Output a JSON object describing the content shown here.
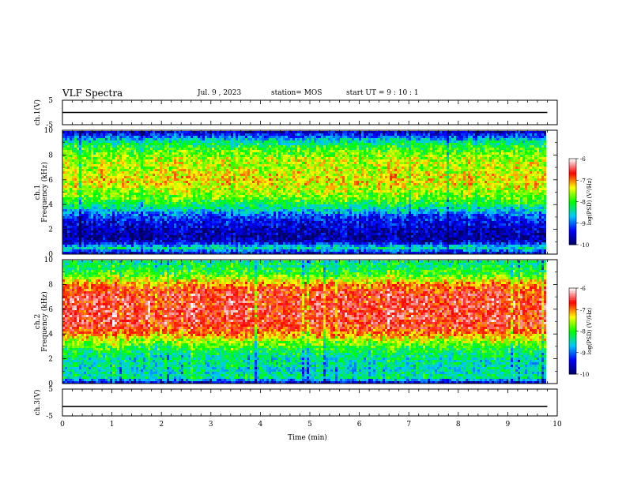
{
  "header": {
    "title": "VLF Spectra",
    "date": "Jul. 9 , 2023",
    "station": "station= MOS",
    "start": "start UT =  9 : 10 : 1"
  },
  "chart_data": [
    {
      "type": "line",
      "ylabel": "ch.1(V)",
      "ylim": [
        -5,
        5
      ],
      "yticks": [
        "5",
        "-5"
      ],
      "series": [
        {
          "x": [
            0,
            9.8
          ],
          "y": [
            0,
            0
          ]
        }
      ]
    },
    {
      "type": "heatmap",
      "ylabel": "ch.1\nFrequency (kHz)",
      "ylim": [
        0,
        10
      ],
      "yticks": [
        "0",
        "2",
        "4",
        "6",
        "8",
        "10"
      ],
      "xlim": [
        0,
        9.8
      ],
      "profile_freq_khz": [
        0,
        0.5,
        1,
        1.5,
        2,
        2.5,
        3,
        3.5,
        4,
        4.5,
        5,
        5.5,
        6,
        6.5,
        7,
        7.5,
        8,
        8.5,
        9,
        9.5,
        10
      ],
      "profile_log_psd": [
        -9.6,
        -8.4,
        -9.6,
        -9.7,
        -9.6,
        -9.4,
        -9.2,
        -8.6,
        -8.2,
        -7.8,
        -7.6,
        -7.4,
        -7.3,
        -7.4,
        -7.5,
        -7.5,
        -7.7,
        -7.9,
        -8.3,
        -9.0,
        -9.8
      ],
      "colorbar": {
        "label": "log(PSD) (V²/Hz)",
        "ticks": [
          "-6",
          "-7",
          "-8",
          "-9",
          "-10"
        ],
        "range": [
          -10,
          -6
        ]
      }
    },
    {
      "type": "heatmap",
      "ylabel": "ch.2\nFrequency (kHz)",
      "ylim": [
        0,
        10
      ],
      "yticks": [
        "0",
        "2",
        "4",
        "6",
        "8",
        "10"
      ],
      "xlim": [
        0,
        9.8
      ],
      "profile_freq_khz": [
        0,
        0.5,
        1,
        1.5,
        2,
        2.5,
        3,
        3.5,
        4,
        4.5,
        5,
        5.5,
        6,
        6.5,
        7,
        7.5,
        8,
        8.5,
        9,
        9.5,
        10
      ],
      "profile_log_psd": [
        -9.6,
        -8.3,
        -8.5,
        -8.4,
        -8.4,
        -8.2,
        -7.9,
        -7.5,
        -7.0,
        -6.7,
        -6.6,
        -6.6,
        -6.6,
        -6.6,
        -6.6,
        -6.7,
        -7.0,
        -7.6,
        -8.0,
        -8.2,
        -8.3
      ],
      "colorbar": {
        "label": "log(PSD) (V²/Hz)",
        "ticks": [
          "-6",
          "-7",
          "-8",
          "-9",
          "-10"
        ],
        "range": [
          -10,
          -6
        ]
      }
    },
    {
      "type": "line",
      "ylabel": "ch.3(V)",
      "ylim": [
        -5,
        5
      ],
      "yticks": [
        "5",
        "-5"
      ],
      "series": [
        {
          "x": [
            0,
            9.8
          ],
          "y": [
            -1.5,
            -1.5
          ]
        }
      ]
    }
  ],
  "xaxis": {
    "label": "Time (min)",
    "ticks": [
      "0",
      "1",
      "2",
      "3",
      "4",
      "5",
      "6",
      "7",
      "8",
      "9",
      "10"
    ],
    "range": [
      0,
      10
    ]
  },
  "colors": {
    "scale": [
      "#000060",
      "#0000ff",
      "#00c8ff",
      "#00ff00",
      "#ffff00",
      "#ff0000",
      "#ffffff"
    ]
  }
}
